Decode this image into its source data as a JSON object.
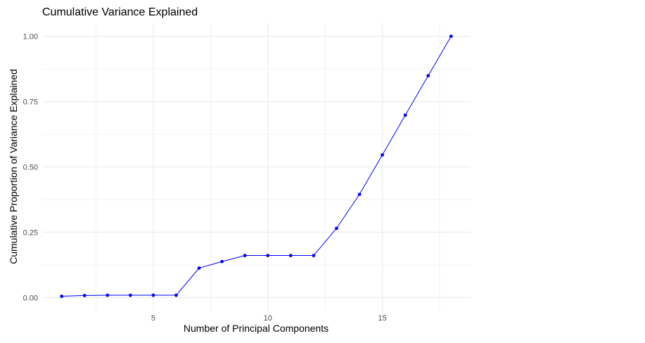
{
  "chart_data": {
    "type": "line",
    "title": "Cumulative Variance Explained",
    "xlabel": "Number of Principal Components",
    "ylabel": "Cumulative Proportion of Variance Explained",
    "x": [
      1,
      2,
      3,
      4,
      5,
      6,
      7,
      8,
      9,
      10,
      11,
      12,
      13,
      14,
      15,
      16,
      17,
      18
    ],
    "y": [
      0.005,
      0.008,
      0.009,
      0.009,
      0.009,
      0.009,
      0.113,
      0.138,
      0.161,
      0.161,
      0.161,
      0.161,
      0.265,
      0.395,
      0.546,
      0.698,
      0.849,
      1.0
    ],
    "xlim": [
      0.15,
      18.85
    ],
    "ylim": [
      -0.05,
      1.05
    ],
    "x_ticks": [
      5,
      10,
      15
    ],
    "x_tick_labels": [
      "5",
      "10",
      "15"
    ],
    "y_ticks": [
      0,
      0.25,
      0.5,
      0.75,
      1.0
    ],
    "y_tick_labels": [
      "0.00",
      "0.25",
      "0.50",
      "0.75",
      "1.00"
    ],
    "grid": true,
    "line_color": "#0000ff",
    "point_color": "#0000ff",
    "grid_color": "#ebebeb"
  }
}
